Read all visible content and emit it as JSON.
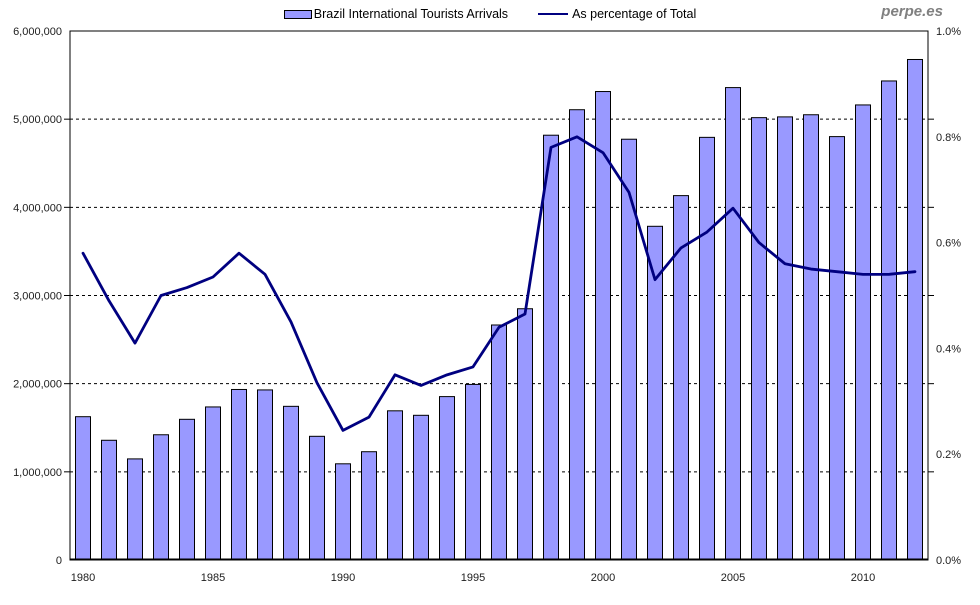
{
  "watermark": "perpe.es",
  "legend": {
    "bars_label": "Brazil International Tourists Arrivals",
    "line_label": "As percentage of Total"
  },
  "colors": {
    "background": "#FFFFFF",
    "bar_fill": "#9999FF",
    "bar_border": "#000000",
    "line": "#000080",
    "grid": "#000000",
    "axis_text": "#202020",
    "watermark": "#808080"
  },
  "chart_data": {
    "type": "bar+line",
    "title": "",
    "xlabel": "",
    "ylabel_left": "",
    "ylabel_right": "",
    "grid": "dashed horizontal lines at left-axis ticks",
    "legend_position": "top-center",
    "categories": [
      1980,
      1981,
      1982,
      1983,
      1984,
      1985,
      1986,
      1987,
      1988,
      1989,
      1990,
      1991,
      1992,
      1993,
      1994,
      1995,
      1996,
      1997,
      1998,
      1999,
      2000,
      2001,
      2002,
      2003,
      2004,
      2005,
      2006,
      2007,
      2008,
      2009,
      2010,
      2011,
      2012
    ],
    "series": [
      {
        "name": "Brazil International Tourists Arrivals",
        "type": "bar",
        "axis": "left",
        "values": [
          1625422,
          1357879,
          1146681,
          1420481,
          1595726,
          1735982,
          1934091,
          1929053,
          1742939,
          1402897,
          1091067,
          1228178,
          1692078,
          1641138,
          1853301,
          1991416,
          2665508,
          2849750,
          4818084,
          5107169,
          5313463,
          4772575,
          3784898,
          4132847,
          4793703,
          5358170,
          5017251,
          5025834,
          5050099,
          4802217,
          5161379,
          5433354,
          5676843
        ]
      },
      {
        "name": "As percentage of Total",
        "type": "line",
        "axis": "right",
        "unit": "%",
        "values": [
          0.58,
          0.49,
          0.41,
          0.5,
          0.515,
          0.535,
          0.58,
          0.54,
          0.45,
          0.335,
          0.245,
          0.27,
          0.35,
          0.33,
          0.35,
          0.365,
          0.44,
          0.465,
          0.78,
          0.8,
          0.77,
          0.695,
          0.53,
          0.59,
          0.62,
          0.665,
          0.6,
          0.56,
          0.55,
          0.545,
          0.54,
          0.54,
          0.545
        ]
      }
    ],
    "left_axis": {
      "min": 0,
      "max": 6000000,
      "tick_interval": 1000000,
      "tick_values": [
        0,
        1000000,
        2000000,
        3000000,
        4000000,
        5000000,
        6000000
      ],
      "tick_labels": [
        "0",
        "1,000,000",
        "2,000,000",
        "3,000,000",
        "4,000,000",
        "5,000,000",
        "6,000,000"
      ]
    },
    "right_axis": {
      "min": 0,
      "max": 1.0,
      "tick_interval": 0.2,
      "tick_values": [
        0,
        0.2,
        0.4,
        0.6,
        0.8,
        1.0
      ],
      "tick_labels": [
        "0.0%",
        "0.2%",
        "0.4%",
        "0.6%",
        "0.8%",
        "1.0%"
      ]
    },
    "x_tick_labels": [
      "1980",
      "1985",
      "1990",
      "1995",
      "2000",
      "2005",
      "2010"
    ]
  }
}
